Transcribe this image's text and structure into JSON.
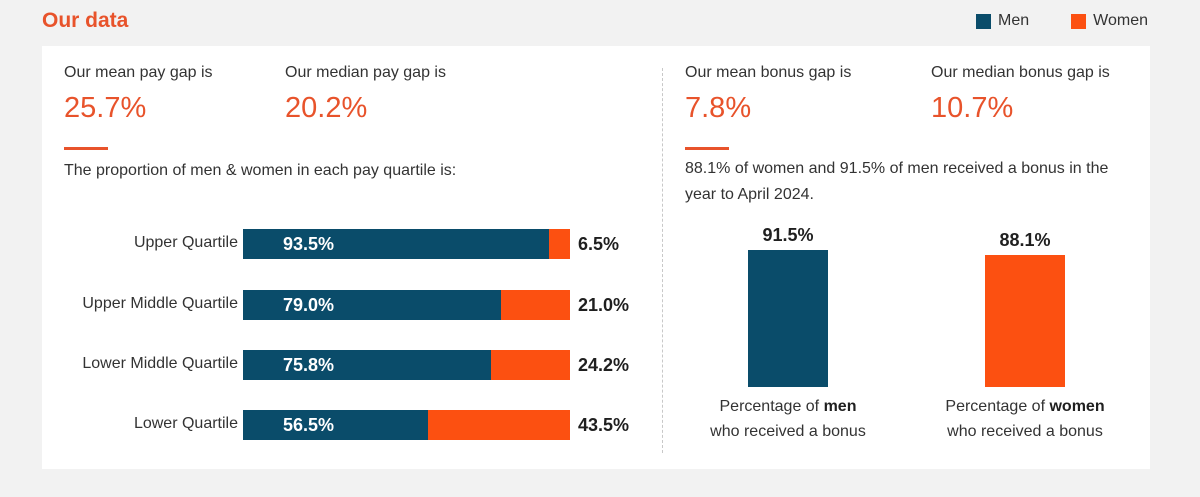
{
  "header": {
    "title": "Our data"
  },
  "legend": [
    {
      "label": "Men",
      "color": "#0a4c6a"
    },
    {
      "label": "Women",
      "color": "#fc5011"
    }
  ],
  "stats": {
    "mean_pay": {
      "label": "Our mean pay gap is",
      "value": "25.7%"
    },
    "median_pay": {
      "label": "Our median pay gap is",
      "value": "20.2%"
    },
    "mean_bonus": {
      "label": "Our mean bonus gap is",
      "value": "7.8%"
    },
    "median_bonus": {
      "label": "Our median bonus gap is",
      "value": "10.7%"
    }
  },
  "quartile_intro": "The proportion of men & women in each pay quartile is:",
  "bonus_intro": "88.1% of women and 91.5% of men received a bonus in the year to April 2024.",
  "bonus_captions": {
    "men": {
      "pre": "Percentage of ",
      "bold": "men",
      "post": "who received a bonus"
    },
    "women": {
      "pre": "Percentage of ",
      "bold": "women",
      "post": "who received a bonus"
    }
  },
  "colors": {
    "men": "#0a4c6a",
    "women": "#fc5011",
    "accent": "#e8532b"
  },
  "chart_data": [
    {
      "type": "bar",
      "stacked": true,
      "orientation": "horizontal",
      "categories": [
        "Upper Quartile",
        "Upper Middle Quartile",
        "Lower Middle Quartile",
        "Lower Quartile"
      ],
      "series": [
        {
          "name": "Men",
          "values": [
            93.5,
            79.0,
            75.8,
            56.5
          ],
          "labels": [
            "93.5%",
            "79.0%",
            "75.8%",
            "56.5%"
          ]
        },
        {
          "name": "Women",
          "values": [
            6.5,
            21.0,
            24.2,
            43.5
          ],
          "labels": [
            "6.5%",
            "21.0%",
            "24.2%",
            "43.5%"
          ]
        }
      ],
      "xlim": [
        0,
        100
      ]
    },
    {
      "type": "bar",
      "categories": [
        "Men",
        "Women"
      ],
      "values": [
        91.5,
        88.1
      ],
      "labels": [
        "91.5%",
        "88.1%"
      ],
      "ylim": [
        0,
        100
      ]
    }
  ]
}
